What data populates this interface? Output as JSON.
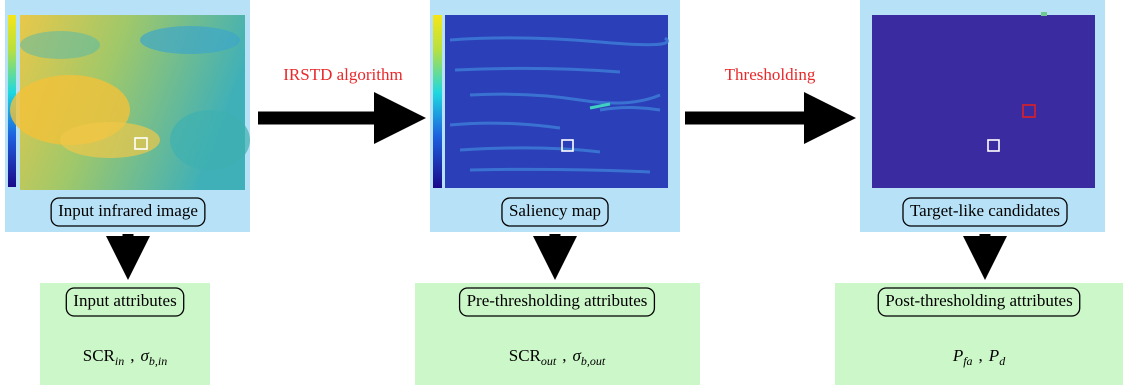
{
  "stages": [
    {
      "label": "Input infrared image",
      "attributes": {
        "title": "Input attributes",
        "formula": [
          {
            "base": "SCR",
            "sub": "in"
          },
          {
            "sep": ","
          },
          {
            "base": "σ",
            "sub": "b,in"
          }
        ]
      }
    },
    {
      "label": "Saliency map",
      "attributes": {
        "title": "Pre-thresholding attributes",
        "formula": [
          {
            "base": "SCR",
            "sub": "out"
          },
          {
            "sep": ","
          },
          {
            "base": "σ",
            "sub": "b,out"
          }
        ]
      }
    },
    {
      "label": "Target-like candidates",
      "attributes": {
        "title": "Post-thresholding attributes",
        "formula": [
          {
            "base": "P",
            "sub": "fa"
          },
          {
            "sep": ","
          },
          {
            "base": "P",
            "sub": "d"
          }
        ]
      }
    }
  ],
  "transitions": [
    "IRSTD algorithm",
    "Thresholding"
  ]
}
